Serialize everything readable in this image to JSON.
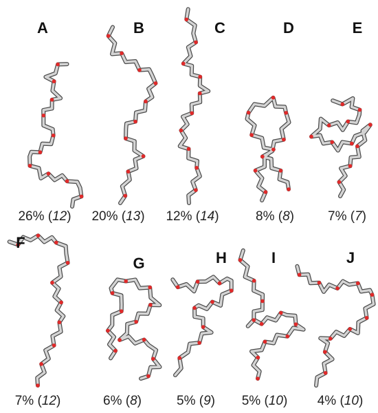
{
  "panels": [
    {
      "label": "A",
      "caption": {
        "text": "26% (",
        "italic": "12",
        "close": ")"
      }
    },
    {
      "label": "B",
      "caption": {
        "text": "20% (",
        "italic": "13",
        "close": ")"
      }
    },
    {
      "label": "C",
      "caption": {
        "text": "12% (",
        "italic": "14",
        "close": ")"
      }
    },
    {
      "label": "D",
      "caption": {
        "text": "8% (",
        "italic": "8",
        "close": ")"
      }
    },
    {
      "label": "E",
      "caption": {
        "text": "7% (",
        "italic": "7",
        "close": ")"
      }
    },
    {
      "label": "F",
      "caption": {
        "text": "7% (",
        "italic": "12",
        "close": ")"
      }
    },
    {
      "label": "G",
      "caption": {
        "text": "6% (",
        "italic": "8",
        "close": ")"
      }
    },
    {
      "label": "H",
      "caption": {
        "text": "5% (",
        "italic": "9",
        "close": ")"
      }
    },
    {
      "label": "I",
      "caption": {
        "text": "5% (",
        "italic": "10",
        "close": ")"
      }
    },
    {
      "label": "J",
      "caption": {
        "text": "4% (",
        "italic": "10",
        "close": ")"
      }
    }
  ]
}
